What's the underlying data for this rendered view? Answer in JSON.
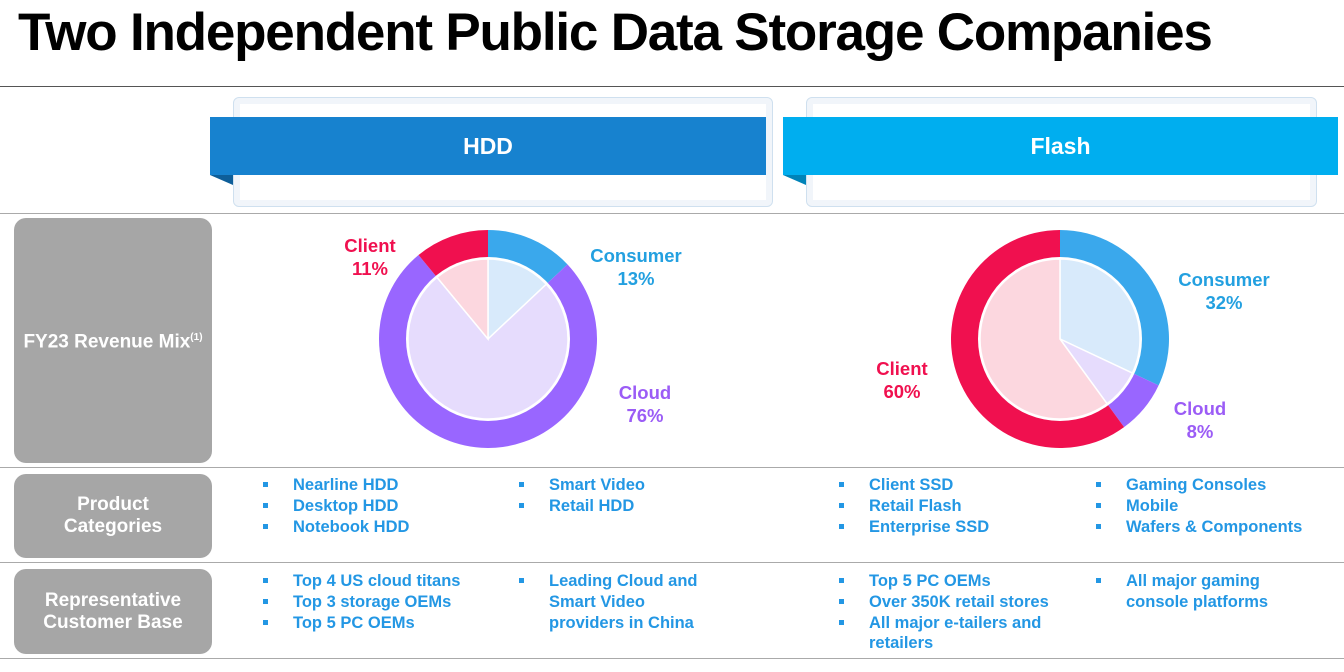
{
  "title": "Two Independent Public Data Storage Companies",
  "columns": {
    "hdd": "HDD",
    "flash": "Flash"
  },
  "row_labels": {
    "revenue_mix": "FY23 Revenue Mix",
    "revenue_mix_footnote": "(1)",
    "product_categories": "Product Categories",
    "customer_base": "Representative Customer Base"
  },
  "colors": {
    "hdd_header": "#1782cf",
    "flash_header": "#00aeef",
    "client": "#f0104f",
    "consumer": "#3aa8ec",
    "cloud": "#9966ff",
    "bullet_text": "#2397e4",
    "row_label_bg": "#a6a6a6"
  },
  "chart_data": [
    {
      "type": "pie",
      "style": "donut",
      "segment": "HDD",
      "categories": [
        "Consumer",
        "Cloud",
        "Client"
      ],
      "values": [
        13,
        76,
        11
      ],
      "labels": {
        "consumer": {
          "name": "Consumer",
          "pct": "13%"
        },
        "cloud": {
          "name": "Cloud",
          "pct": "76%"
        },
        "client": {
          "name": "Client",
          "pct": "11%"
        }
      }
    },
    {
      "type": "pie",
      "style": "donut",
      "segment": "Flash",
      "categories": [
        "Consumer",
        "Cloud",
        "Client"
      ],
      "values": [
        32,
        8,
        60
      ],
      "labels": {
        "consumer": {
          "name": "Consumer",
          "pct": "32%"
        },
        "cloud": {
          "name": "Cloud",
          "pct": "8%"
        },
        "client": {
          "name": "Client",
          "pct": "60%"
        }
      }
    }
  ],
  "product_categories": {
    "hdd_col1": [
      "Nearline HDD",
      "Desktop HDD",
      "Notebook HDD"
    ],
    "hdd_col2": [
      "Smart Video",
      "Retail HDD"
    ],
    "flash_col1": [
      "Client SSD",
      "Retail Flash",
      "Enterprise SSD"
    ],
    "flash_col2": [
      "Gaming Consoles",
      "Mobile",
      "Wafers & Components"
    ]
  },
  "customer_base": {
    "hdd_col1": [
      "Top 4 US cloud titans",
      "Top 3 storage OEMs",
      "Top 5 PC OEMs"
    ],
    "hdd_col2": [
      "Leading Cloud and Smart Video providers in China"
    ],
    "flash_col1": [
      "Top 5 PC OEMs",
      "Over 350K retail stores",
      "All major e-tailers and retailers"
    ],
    "flash_col2": [
      "All major gaming console platforms"
    ]
  }
}
